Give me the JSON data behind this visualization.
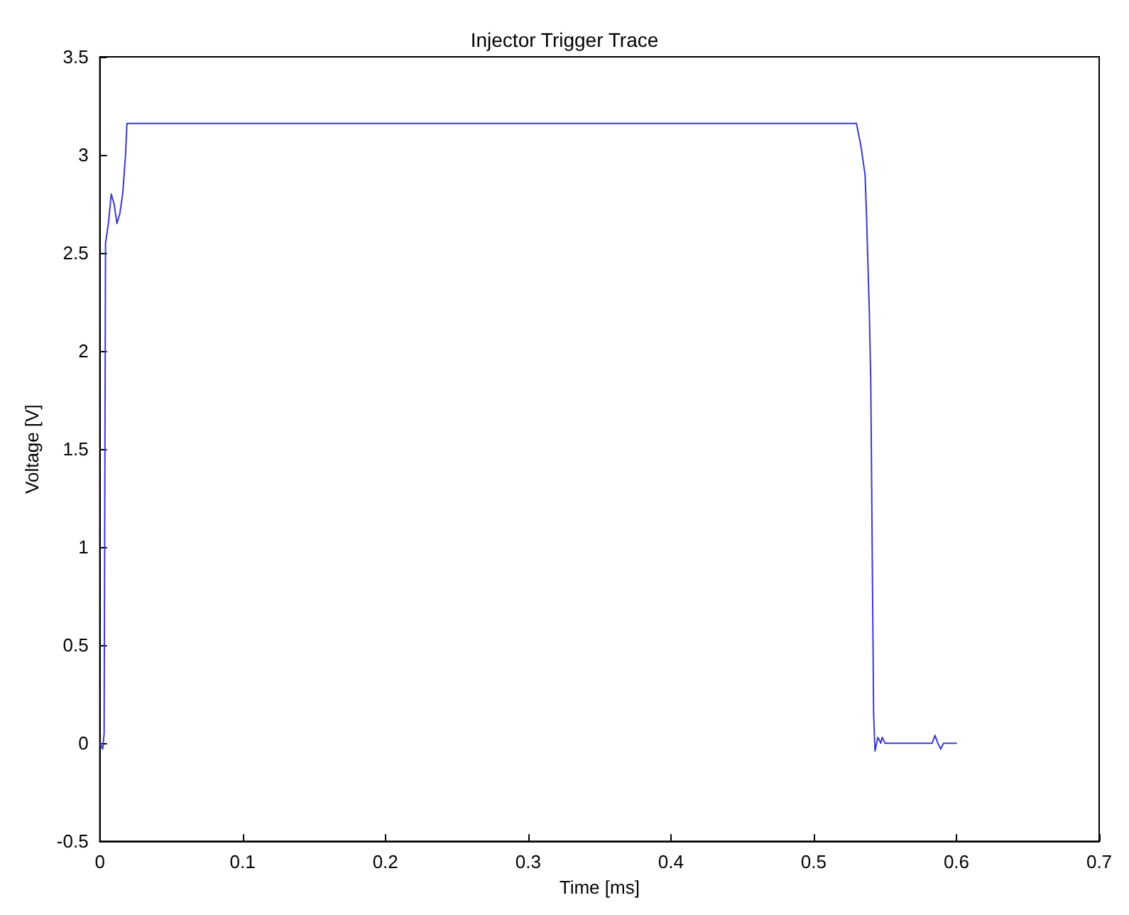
{
  "chart_data": {
    "type": "line",
    "title": "Injector Trigger Trace",
    "xlabel": "Time [ms]",
    "ylabel": "Voltage [V]",
    "xlim": [
      0,
      0.7
    ],
    "xticks": [
      0,
      0.1,
      0.2,
      0.3,
      0.4,
      0.5,
      0.6,
      0.7
    ],
    "ylim": [
      -0.5,
      3.5
    ],
    "yticks": [
      -0.5,
      0,
      0.5,
      1,
      1.5,
      2,
      2.5,
      3,
      3.5
    ],
    "grid": false,
    "marker": "none",
    "line_style": "solid",
    "series": [
      {
        "color": "#3a3acc",
        "x": [
          0,
          0.002,
          0.003,
          0.004,
          0.006,
          0.008,
          0.01,
          0.012,
          0.014,
          0.016,
          0.018,
          0.019,
          0.53,
          0.533,
          0.536,
          0.537,
          0.539,
          0.54,
          0.541,
          0.542,
          0.543,
          0.545,
          0.547,
          0.548,
          0.55,
          0.583,
          0.585,
          0.587,
          0.589,
          0.591,
          0.6
        ],
        "values": [
          0,
          -0.03,
          0.05,
          2.55,
          2.65,
          2.8,
          2.75,
          2.65,
          2.7,
          2.8,
          3.0,
          3.16,
          3.16,
          3.05,
          2.9,
          2.7,
          2.2,
          1.85,
          1.0,
          0.15,
          -0.04,
          0.03,
          0,
          0.03,
          0,
          0,
          0.04,
          0,
          -0.03,
          0,
          0
        ]
      }
    ]
  }
}
